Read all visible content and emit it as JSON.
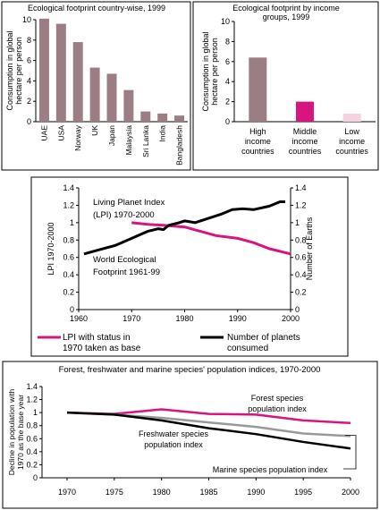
{
  "chart_data": [
    {
      "type": "bar",
      "title": "Ecological footprint country-wise, 1999",
      "ylabel": "Consumption in global hectare per person",
      "ylim": [
        0,
        10
      ],
      "yticks": [
        0,
        2,
        4,
        6,
        8,
        10
      ],
      "categories": [
        "UAE",
        "USA",
        "Norway",
        "UK",
        "Japan",
        "Malaysia",
        "Sri Lanka",
        "India",
        "Bangladesh"
      ],
      "values": [
        10.1,
        9.6,
        7.8,
        5.3,
        4.7,
        3.1,
        1.0,
        0.8,
        0.6
      ],
      "color": "#9b7d84"
    },
    {
      "type": "bar",
      "title": "Ecological footprint by income groups, 1999",
      "ylabel": "Consumption in global hectare per person",
      "ylim": [
        0,
        10
      ],
      "yticks": [
        0,
        2,
        4,
        6,
        8,
        10
      ],
      "categories": [
        "High income countries",
        "Middle income countries",
        "Low income countries"
      ],
      "values": [
        6.4,
        2.0,
        0.8
      ],
      "colors": [
        "#9b7d84",
        "#d8147e",
        "#f3d3e0"
      ]
    },
    {
      "type": "line",
      "ylabel": "LPI 1970-2000",
      "y2label": "Number of Earths",
      "xlim": [
        1960,
        2000
      ],
      "ylim": [
        0,
        1.4
      ],
      "y2lim": [
        0,
        1.4
      ],
      "xticks": [
        1960,
        1970,
        1980,
        1990,
        2000
      ],
      "yticks": [
        0,
        0.2,
        0.4,
        0.6,
        0.8,
        1.0,
        1.2,
        1.4
      ],
      "annotations": [
        "Living Planet Index (LPI) 1970-2000",
        "World Ecological Footprint 1961-99"
      ],
      "series": [
        {
          "name": "LPI with status in 1970 taken as base",
          "color": "#d8147e",
          "x": [
            1970,
            1973,
            1976,
            1980,
            1983,
            1986,
            1990,
            1993,
            1996,
            2000
          ],
          "y": [
            1.0,
            0.98,
            0.97,
            0.95,
            0.9,
            0.85,
            0.82,
            0.77,
            0.7,
            0.64
          ]
        },
        {
          "name": "Number of planets consumed",
          "color": "#000000",
          "x": [
            1961,
            1964,
            1967,
            1970,
            1973,
            1975,
            1976,
            1977,
            1979,
            1980,
            1982,
            1984,
            1987,
            1989,
            1991,
            1993,
            1996,
            1998,
            1999
          ],
          "y": [
            0.64,
            0.69,
            0.74,
            0.82,
            0.9,
            0.93,
            0.92,
            0.97,
            1.0,
            1.02,
            1.0,
            1.04,
            1.1,
            1.15,
            1.16,
            1.15,
            1.19,
            1.24,
            1.24
          ]
        }
      ]
    },
    {
      "type": "line",
      "title": "Forest, freshwater and marine species' population indices, 1970-2000",
      "ylabel": "Decline in population with 1970 as the base year",
      "xlim": [
        1970,
        2000
      ],
      "ylim": [
        0,
        1.4
      ],
      "xticks": [
        1970,
        1975,
        1980,
        1985,
        1990,
        1995,
        2000
      ],
      "yticks": [
        0,
        0.2,
        0.4,
        0.6,
        0.8,
        1.0,
        1.2,
        1.4
      ],
      "series": [
        {
          "name": "Forest species population index",
          "color": "#d8147e",
          "x": [
            1970,
            1975,
            1980,
            1985,
            1990,
            1995,
            2000
          ],
          "y": [
            1.0,
            0.98,
            1.05,
            0.98,
            0.97,
            0.88,
            0.84
          ]
        },
        {
          "name": "Freshwater species population index",
          "color": "#999999",
          "x": [
            1970,
            1975,
            1980,
            1985,
            1990,
            1995,
            2000
          ],
          "y": [
            1.0,
            0.97,
            0.92,
            0.85,
            0.78,
            0.68,
            0.64
          ]
        },
        {
          "name": "Marine species population index",
          "color": "#000000",
          "x": [
            1970,
            1975,
            1980,
            1985,
            1990,
            1995,
            2000
          ],
          "y": [
            1.0,
            0.97,
            0.88,
            0.76,
            0.67,
            0.55,
            0.45
          ]
        }
      ]
    }
  ]
}
